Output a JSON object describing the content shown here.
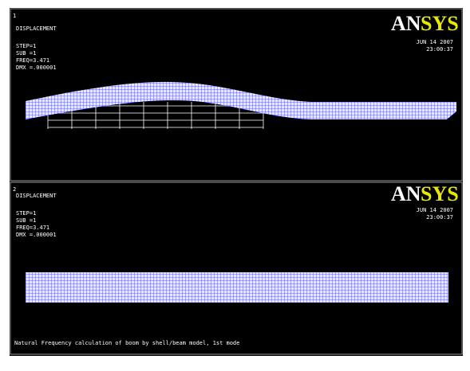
{
  "panels": [
    {
      "number": "1",
      "lines": [
        "DISPLACEMENT",
        "STEP=1",
        "SUB =1",
        "FREQ=3.471",
        "DMX =.000001"
      ],
      "logo_an": "AN",
      "logo_sys": "SYS",
      "date": "JUN 14 2007",
      "time": "23:00:37"
    },
    {
      "number": "2",
      "lines": [
        "DISPLACEMENT",
        "STEP=1",
        "SUB =1",
        "FREQ=3.471",
        "DMX =.000001"
      ],
      "logo_an": "AN",
      "logo_sys": "SYS",
      "date": "JUN 14 2007",
      "time": "23:00:37"
    }
  ],
  "caption": "Natural Frequency calculation of boom by shell/beam model, 1st mode"
}
